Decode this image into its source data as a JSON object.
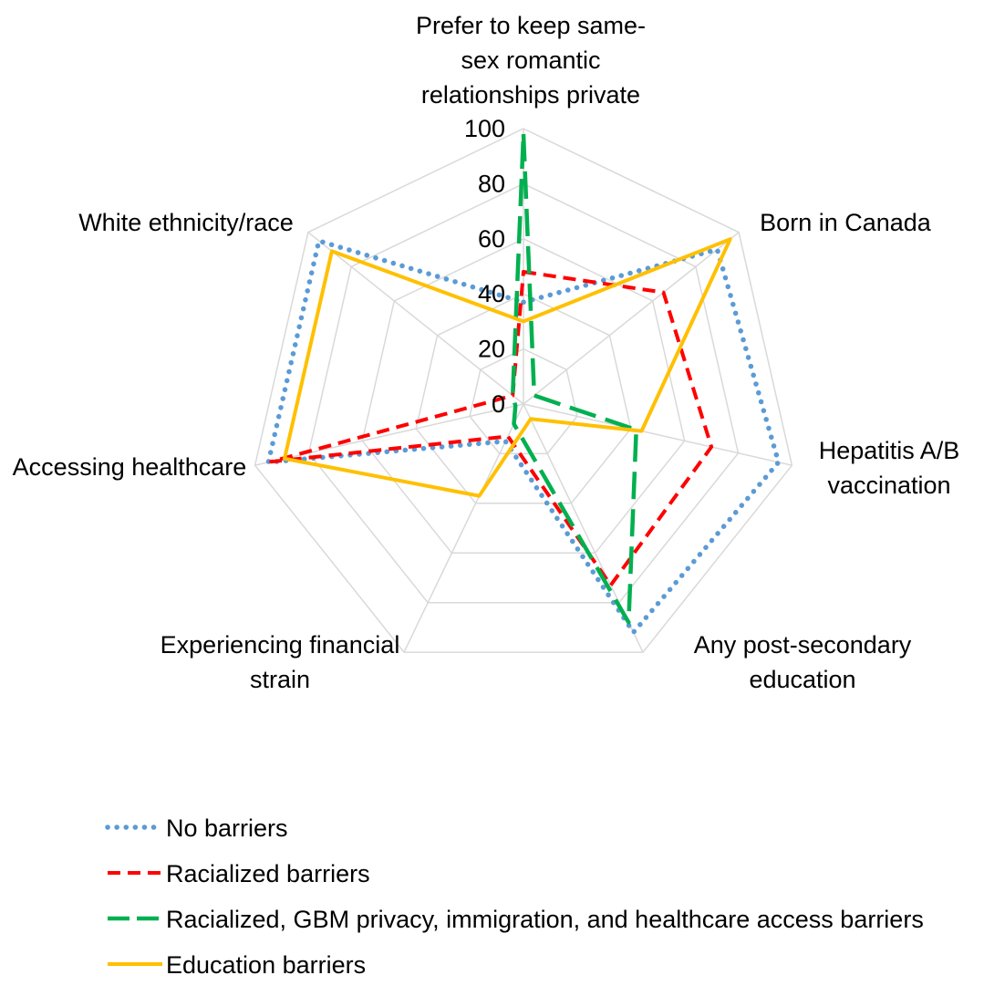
{
  "chart_data": {
    "type": "radar",
    "categories": [
      "Prefer to keep same-sex romantic relationships private",
      "Born in Canada",
      "Hepatitis A/B vaccination",
      "Any post-secondary education",
      "Experiencing financial strain",
      "Accessing healthcare",
      "White ethnicity/race"
    ],
    "category_lines": [
      [
        "Prefer to keep same-",
        "sex romantic",
        "relationships private"
      ],
      [
        "Born in Canada"
      ],
      [
        "Hepatitis A/B",
        "vaccination"
      ],
      [
        "Any post-secondary",
        "education"
      ],
      [
        "Experiencing financial",
        "strain"
      ],
      [
        "Accessing healthcare"
      ],
      [
        "White ethnicity/race"
      ]
    ],
    "r_axis": {
      "min": 0,
      "max": 100,
      "step": 20,
      "ticks": [
        "0",
        "20",
        "40",
        "60",
        "80",
        "100"
      ]
    },
    "grid": true,
    "legend_position": "bottom",
    "series": [
      {
        "name": "No barriers",
        "color": "#5B9BD5",
        "dash": "dotted",
        "values": [
          37,
          90,
          95,
          92,
          15,
          95,
          95
        ]
      },
      {
        "name": "Racialized barriers",
        "color": "#FF0000",
        "dash": "dashed",
        "values": [
          48,
          65,
          70,
          73,
          13,
          94,
          5
        ]
      },
      {
        "name": "Racialized, GBM privacy, immigration, and healthcare access barriers",
        "color": "#00B050",
        "dash": "long-dash",
        "values": [
          98,
          5,
          42,
          88,
          8,
          3,
          5
        ]
      },
      {
        "name": "Education barriers",
        "color": "#FFC000",
        "dash": "solid",
        "values": [
          30,
          96,
          44,
          6,
          37,
          89,
          89
        ]
      }
    ]
  }
}
